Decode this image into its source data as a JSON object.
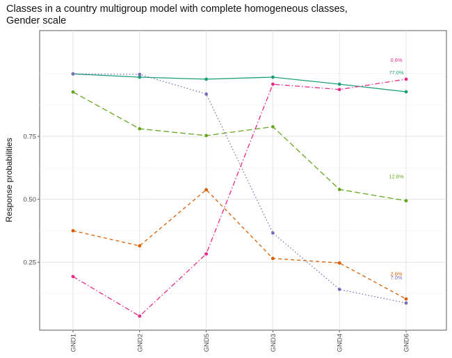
{
  "chart_data": {
    "type": "line",
    "title_line1": "Classes in a country multigroup model with complete homogeneous classes,",
    "title_line2": "Gender scale",
    "xlabel": "",
    "ylabel": "Response probabilities",
    "categories": [
      "GND1",
      "GND2",
      "GND5",
      "GND3",
      "GND4",
      "GND6"
    ],
    "yticks": [
      0.25,
      0.5,
      0.75
    ],
    "ytick_labels": [
      "0.25",
      "0.50",
      "0.75"
    ],
    "ylim": [
      -0.02,
      1.17
    ],
    "grid": true,
    "series": [
      {
        "color": "#1b9e77",
        "dash": "solid",
        "values": [
          0.998,
          0.985,
          0.977,
          0.985,
          0.957,
          0.927
        ]
      },
      {
        "color": "#66a61e",
        "dash": "8,4",
        "values": [
          0.926,
          0.78,
          0.753,
          0.788,
          0.539,
          0.494
        ]
      },
      {
        "color": "#d95f02",
        "dash": "5,4",
        "values": [
          0.375,
          0.315,
          0.538,
          0.265,
          0.247,
          0.104
        ]
      },
      {
        "color": "#7570b3",
        "dash": "1.5,3",
        "values": [
          0.998,
          0.996,
          0.918,
          0.366,
          0.142,
          0.088
        ]
      },
      {
        "color": "#e7298a",
        "dash": "7,3,1.5,3",
        "values": [
          0.193,
          0.036,
          0.283,
          0.957,
          0.936,
          0.977
        ]
      }
    ],
    "annotations": [
      {
        "text": "0.6%",
        "color": "#e7298a",
        "x": "GND6",
        "y": 1.052
      },
      {
        "text": "77.0%",
        "color": "#1b9e77",
        "x": "GND6",
        "y": 1.003
      },
      {
        "text": "12.8%",
        "color": "#66a61e",
        "x": "GND6",
        "y": 0.59
      },
      {
        "text": "2.6%",
        "color": "#d95f02",
        "x": "GND6",
        "y": 0.203
      },
      {
        "text": "7.0%",
        "color": "#7570b3",
        "x": "GND6",
        "y": 0.189
      }
    ]
  }
}
